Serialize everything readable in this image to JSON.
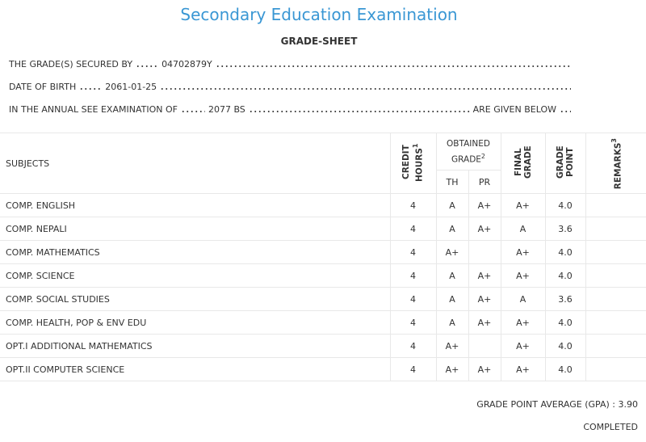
{
  "header": {
    "title": "Secondary Education Examination",
    "subtitle": "GRADE-SHEET"
  },
  "info": [
    {
      "label": "THE GRADE(S) SECURED BY",
      "value": "04702879Y"
    },
    {
      "label": "DATE OF BIRTH",
      "value": "2061-01-25"
    },
    {
      "label": "IN THE ANNUAL SEE EXAMINATION OF",
      "value": "2077 BS",
      "suffix": "ARE GIVEN BELOW"
    }
  ],
  "table": {
    "headers": {
      "subjects": "SUBJECTS",
      "credit_hours": "CREDIT HOURS",
      "credit_note": "1",
      "obtained_grade": "OBTAINED GRADE",
      "obtained_note": "2",
      "th": "TH",
      "pr": "PR",
      "final_grade": "FINAL GRADE",
      "grade_point": "GRADE POINT",
      "remarks": "REMARKS",
      "remarks_note": "3"
    },
    "rows": [
      {
        "subject": "COMP. ENGLISH",
        "credit_hours": "4",
        "th": "A",
        "pr": "A+",
        "final_grade": "A+",
        "grade_point": "4.0"
      },
      {
        "subject": "COMP. NEPALI",
        "credit_hours": "4",
        "th": "A",
        "pr": "A+",
        "final_grade": "A",
        "grade_point": "3.6"
      },
      {
        "subject": "COMP. MATHEMATICS",
        "credit_hours": "4",
        "th": "A+",
        "final_grade": "A+",
        "grade_point": "4.0"
      },
      {
        "subject": "COMP. SCIENCE",
        "credit_hours": "4",
        "th": "A",
        "pr": "A+",
        "final_grade": "A+",
        "grade_point": "4.0"
      },
      {
        "subject": "COMP. SOCIAL STUDIES",
        "credit_hours": "4",
        "th": "A",
        "pr": "A+",
        "final_grade": "A",
        "grade_point": "3.6"
      },
      {
        "subject": "COMP. HEALTH, POP & ENV EDU",
        "credit_hours": "4",
        "th": "A",
        "pr": "A+",
        "final_grade": "A+",
        "grade_point": "4.0"
      },
      {
        "subject": "OPT.I ADDITIONAL MATHEMATICS",
        "credit_hours": "4",
        "th": "A+",
        "final_grade": "A+",
        "grade_point": "4.0"
      },
      {
        "subject": "OPT.II COMPUTER SCIENCE",
        "credit_hours": "4",
        "th": "A+",
        "pr": "A+",
        "final_grade": "A+",
        "grade_point": "4.0"
      }
    ]
  },
  "footer": {
    "gpa": "GRADE POINT AVERAGE (GPA) : 3.90",
    "status": "COMPLETED"
  }
}
